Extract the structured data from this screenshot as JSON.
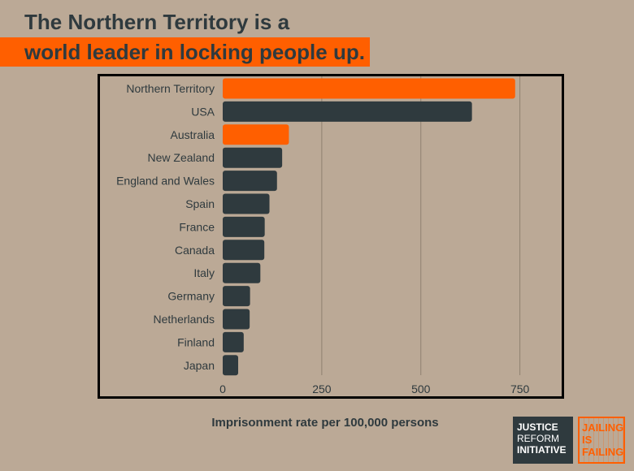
{
  "header": {
    "title_line1": "The Northern Territory is a",
    "title_line2": "world leader in locking people up."
  },
  "chart_data": {
    "type": "bar",
    "orientation": "horizontal",
    "categories": [
      "Northern Territory",
      "USA",
      "Australia",
      "New Zealand",
      "England and Wales",
      "Spain",
      "France",
      "Canada",
      "Italy",
      "Germany",
      "Netherlands",
      "Finland",
      "Japan"
    ],
    "values": [
      738,
      629,
      167,
      150,
      137,
      118,
      106,
      105,
      95,
      69,
      68,
      53,
      39
    ],
    "highlighted": [
      "Northern Territory",
      "Australia"
    ],
    "colors": {
      "highlight": "#ff5f00",
      "default": "#2f3a3e",
      "grid": "#8f8170",
      "background": "#bba996"
    },
    "xlabel": "Imprisonment rate per 100,000 persons",
    "xlim": [
      0,
      800
    ],
    "xticks": [
      0,
      250,
      500,
      750
    ],
    "grid": true
  },
  "logos": {
    "jri": {
      "line1": "JUSTICE",
      "line2": "REFORM",
      "line3": "INITIATIVE"
    },
    "jif": {
      "line1": "JAILING",
      "line2": "IS",
      "line3": "FAILING"
    }
  }
}
